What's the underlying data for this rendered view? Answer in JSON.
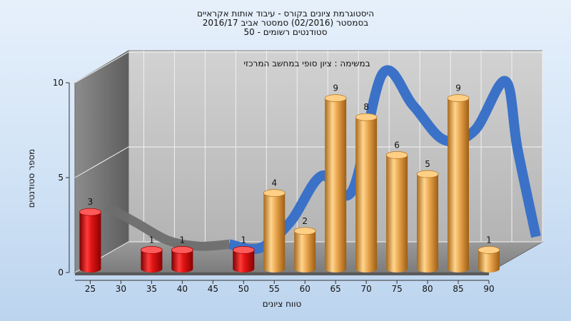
{
  "chart_data": {
    "type": "bar",
    "title_lines": [
      "היסטוגרמת ציונים בקורס - עיבוד אותות אקראיים",
      "בסמסטר  (02/2016)  סמסטר אביב 2016/17",
      "סטודנטים רשומים - 50"
    ],
    "subtitle": "במשימה : ציון סופי במחשב המרכזי",
    "xlabel": "טווח ציונים",
    "ylabel": "מספר סטודנטים",
    "x_ticks": [
      25,
      30,
      35,
      40,
      45,
      50,
      55,
      60,
      65,
      70,
      75,
      80,
      85,
      90
    ],
    "y_ticks": [
      0,
      5,
      10
    ],
    "ylim": [
      0,
      10
    ],
    "grid": true,
    "bars": [
      {
        "x": 25,
        "value": 3,
        "label": "3",
        "color": "#d81818"
      },
      {
        "x": 35,
        "value": 1,
        "label": "1",
        "color": "#d81818"
      },
      {
        "x": 40,
        "value": 1,
        "label": "1",
        "color": "#d81818"
      },
      {
        "x": 50,
        "value": 1,
        "label": "1",
        "color": "#d81818"
      },
      {
        "x": 55,
        "value": 4,
        "label": "4",
        "color": "#e9a851"
      },
      {
        "x": 60,
        "value": 2,
        "label": "2",
        "color": "#e9a851"
      },
      {
        "x": 65,
        "value": 9,
        "label": "9",
        "color": "#e9a851"
      },
      {
        "x": 70,
        "value": 8,
        "label": "8",
        "color": "#e9a851"
      },
      {
        "x": 75,
        "value": 6,
        "label": "6",
        "color": "#e9a851"
      },
      {
        "x": 80,
        "value": 5,
        "label": "5",
        "color": "#e9a851"
      },
      {
        "x": 85,
        "value": 9,
        "label": "9",
        "color": "#e9a851"
      },
      {
        "x": 90,
        "value": 1,
        "label": "1",
        "color": "#e9a851"
      }
    ],
    "trend": {
      "gray_color": "#6e6e6e",
      "blue_color": "#3b72c8"
    }
  }
}
